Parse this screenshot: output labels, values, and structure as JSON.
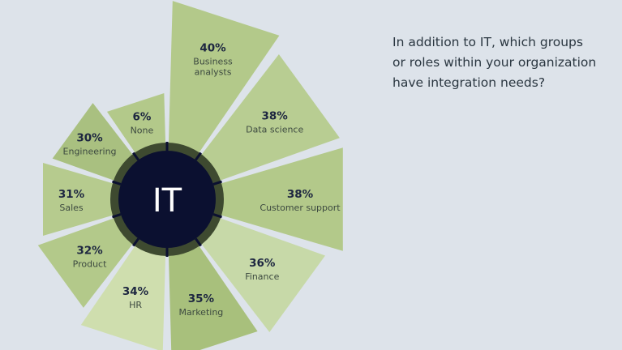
{
  "question_lines": [
    "In addition to IT, which groups",
    "or roles within your organization",
    "have integration needs?"
  ],
  "chart_data": {
    "type": "pie",
    "center_label": "IT",
    "unit": "%",
    "max_value": 40,
    "start_angle_deg": 0,
    "sweep_deg": 360,
    "slices": [
      {
        "label": "Business analysts",
        "label_lines": [
          "Business",
          "analysts"
        ],
        "value": 40,
        "value_text": "40%",
        "color": "#b3c98a"
      },
      {
        "label": "Data science",
        "label_lines": [
          "Data science"
        ],
        "value": 38,
        "value_text": "38%",
        "color": "#b8cd92"
      },
      {
        "label": "Customer support",
        "label_lines": [
          "Customer support"
        ],
        "value": 38,
        "value_text": "38%",
        "color": "#b3c98a"
      },
      {
        "label": "Finance",
        "label_lines": [
          "Finance"
        ],
        "value": 36,
        "value_text": "36%",
        "color": "#c7d9a8"
      },
      {
        "label": "Marketing",
        "label_lines": [
          "Marketing"
        ],
        "value": 35,
        "value_text": "35%",
        "color": "#a8c07c"
      },
      {
        "label": "HR",
        "label_lines": [
          "HR"
        ],
        "value": 34,
        "value_text": "34%",
        "color": "#cfdeae"
      },
      {
        "label": "Product",
        "label_lines": [
          "Product"
        ],
        "value": 32,
        "value_text": "32%",
        "color": "#b3c98a"
      },
      {
        "label": "Sales",
        "label_lines": [
          "Sales"
        ],
        "value": 31,
        "value_text": "31%",
        "color": "#b6cb8e"
      },
      {
        "label": "Engineering",
        "label_lines": [
          "Engineering"
        ],
        "value": 30,
        "value_text": "30%",
        "color": "#a9c080"
      },
      {
        "label": "None",
        "label_lines": [
          "None"
        ],
        "value": 6,
        "value_text": "6%",
        "color": "#b3c98a"
      }
    ]
  }
}
